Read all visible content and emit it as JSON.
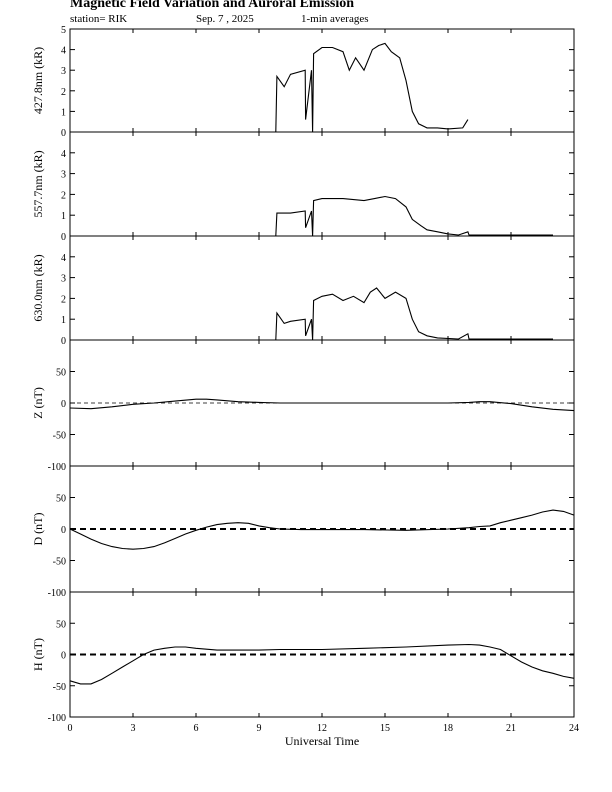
{
  "header": {
    "title": "Magnetic Field Variation and Auroral Emission",
    "station": "station= RIK",
    "date": "Sep. 7  , 2025",
    "averages": "1-min averages"
  },
  "chart_data": {
    "type": "line",
    "x_axis": {
      "label": "Universal Time",
      "range": [
        0,
        24
      ],
      "ticks": [
        0,
        3,
        6,
        9,
        12,
        15,
        18,
        21,
        24
      ],
      "tick_labels": [
        "0",
        "3",
        "6",
        "9",
        "12",
        "15",
        "18",
        "21",
        "24"
      ]
    },
    "panels": [
      {
        "ylabel": "427.8nm (kR)",
        "ylim": [
          0,
          5
        ],
        "yticks": [
          0,
          1,
          2,
          3,
          4,
          5
        ],
        "zero_line": "none",
        "series": {
          "x": [
            0,
            9.8,
            9.85,
            10.2,
            10.5,
            11.2,
            11.22,
            11.5,
            11.55,
            11.6,
            12.0,
            12.5,
            13.0,
            13.3,
            13.6,
            14.0,
            14.4,
            14.7,
            15.0,
            15.3,
            15.7,
            16.0,
            16.3,
            16.6,
            17.0,
            17.5,
            18.0,
            18.7,
            18.95
          ],
          "y": [
            0,
            0,
            2.7,
            2.2,
            2.8,
            3.0,
            0.6,
            3.0,
            0,
            3.8,
            4.1,
            4.1,
            3.9,
            3.0,
            3.6,
            3.0,
            4.0,
            4.2,
            4.3,
            3.9,
            3.6,
            2.5,
            1.0,
            0.4,
            0.2,
            0.2,
            0.15,
            0.2,
            0.6
          ]
        }
      },
      {
        "ylabel": "557.7nm (kR)",
        "ylim": [
          0,
          5
        ],
        "yticks": [
          0,
          1,
          2,
          3,
          4
        ],
        "zero_line": "none",
        "series": {
          "x": [
            8.0,
            9.8,
            9.85,
            10.5,
            11.2,
            11.22,
            11.5,
            11.55,
            11.6,
            12.0,
            13.0,
            14.0,
            14.5,
            15.0,
            15.5,
            16.0,
            16.3,
            16.7,
            17.0,
            17.5,
            18.0,
            18.5,
            18.95,
            19.0,
            23.0
          ],
          "y": [
            0,
            0,
            1.1,
            1.1,
            1.2,
            0.4,
            1.2,
            0,
            1.7,
            1.8,
            1.8,
            1.7,
            1.8,
            1.9,
            1.8,
            1.4,
            0.8,
            0.5,
            0.3,
            0.2,
            0.1,
            0.05,
            0.2,
            0.05,
            0.05
          ]
        }
      },
      {
        "ylabel": "630.0nm (kR)",
        "ylim": [
          0,
          5
        ],
        "yticks": [
          0,
          1,
          2,
          3,
          4
        ],
        "zero_line": "none",
        "series": {
          "x": [
            8.0,
            9.8,
            9.85,
            10.2,
            10.5,
            11.2,
            11.22,
            11.5,
            11.55,
            11.6,
            12.0,
            12.5,
            13.0,
            13.5,
            14.0,
            14.3,
            14.6,
            15.0,
            15.5,
            16.0,
            16.3,
            16.6,
            17.0,
            17.5,
            18.5,
            18.95,
            19.0,
            23.0
          ],
          "y": [
            0,
            0,
            1.3,
            0.8,
            0.9,
            1.0,
            0.2,
            1.0,
            0,
            1.9,
            2.1,
            2.2,
            1.9,
            2.1,
            1.8,
            2.3,
            2.5,
            2.0,
            2.3,
            2.0,
            1.0,
            0.4,
            0.2,
            0.1,
            0.05,
            0.3,
            0.05,
            0.05
          ]
        }
      },
      {
        "ylabel": "Z (nT)",
        "ylim": [
          -100,
          100
        ],
        "yticks": [
          -100,
          -50,
          0,
          50
        ],
        "zero_line": "thin-dashed",
        "series": {
          "x": [
            0,
            1.0,
            2.0,
            3.0,
            4.0,
            5.0,
            6.0,
            6.5,
            7.0,
            8.0,
            9.0,
            10.0,
            12.0,
            14.0,
            16.0,
            18.0,
            19.0,
            19.5,
            20.0,
            21.0,
            22.0,
            23.0,
            24.0
          ],
          "y": [
            -8,
            -9,
            -6,
            -2,
            0,
            3,
            6,
            6,
            5,
            2,
            1,
            0,
            0,
            0,
            0,
            0,
            1,
            2,
            2,
            -1,
            -6,
            -10,
            -12
          ]
        }
      },
      {
        "ylabel": "D (nT)",
        "ylim": [
          -100,
          100
        ],
        "yticks": [
          -100,
          -50,
          0,
          50
        ],
        "zero_line": "thick-dashed",
        "series": {
          "x": [
            0,
            0.5,
            1.0,
            1.5,
            2.0,
            2.5,
            3.0,
            3.5,
            4.0,
            4.5,
            5.0,
            5.5,
            6.0,
            6.5,
            7.0,
            7.5,
            8.0,
            8.5,
            9.0,
            9.5,
            10.0,
            11.0,
            12.0,
            14.0,
            16.0,
            18.0,
            19.0,
            19.5,
            20.0,
            20.5,
            21.0,
            21.5,
            22.0,
            22.5,
            23.0,
            23.5,
            24.0
          ],
          "y": [
            0,
            -8,
            -16,
            -23,
            -28,
            -31,
            -32,
            -31,
            -28,
            -22,
            -15,
            -8,
            -2,
            3,
            7,
            9,
            10,
            9,
            5,
            2,
            0,
            -1,
            -1,
            -1,
            -2,
            0,
            2,
            4,
            5,
            10,
            14,
            18,
            22,
            27,
            30,
            28,
            22
          ]
        }
      },
      {
        "ylabel": "H (nT)",
        "ylim": [
          -100,
          100
        ],
        "yticks": [
          -100,
          -50,
          0,
          50
        ],
        "zero_line": "thick-dashed",
        "series": {
          "x": [
            0,
            0.5,
            1.0,
            1.5,
            2.0,
            2.5,
            3.0,
            3.5,
            4.0,
            4.5,
            5.0,
            5.5,
            6.0,
            7.0,
            8.0,
            9.0,
            10.0,
            12.0,
            14.0,
            16.0,
            18.0,
            19.0,
            19.5,
            20.0,
            20.5,
            21.0,
            21.5,
            22.0,
            22.5,
            23.0,
            23.5,
            24.0
          ],
          "y": [
            -42,
            -47,
            -47,
            -40,
            -30,
            -20,
            -10,
            0,
            7,
            10,
            12,
            12,
            10,
            7,
            7,
            7,
            8,
            8,
            10,
            12,
            15,
            16,
            15,
            12,
            8,
            -2,
            -12,
            -20,
            -26,
            -30,
            -35,
            -38
          ]
        }
      }
    ]
  }
}
